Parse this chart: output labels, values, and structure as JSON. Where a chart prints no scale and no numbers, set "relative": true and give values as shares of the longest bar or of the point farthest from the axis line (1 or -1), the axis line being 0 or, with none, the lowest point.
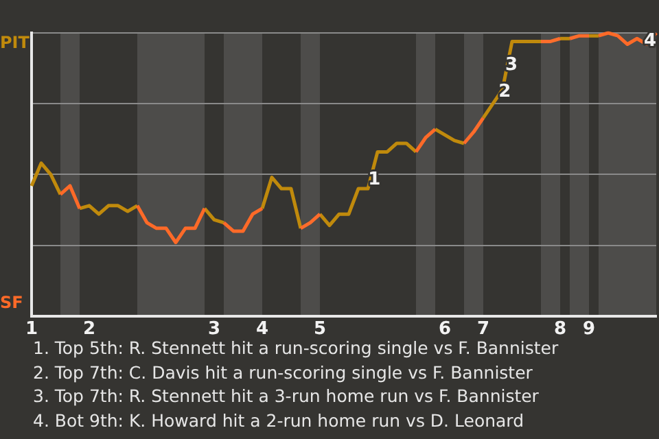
{
  "chart_data": {
    "type": "line",
    "relative": true,
    "categories": [
      "1",
      null,
      null,
      null,
      null,
      null,
      "2",
      null,
      null,
      null,
      null,
      null,
      null,
      null,
      null,
      null,
      null,
      null,
      null,
      "3",
      null,
      null,
      null,
      null,
      "4",
      null,
      null,
      null,
      null,
      null,
      "5",
      null,
      null,
      null,
      null,
      null,
      null,
      null,
      null,
      null,
      null,
      null,
      null,
      "6",
      null,
      null,
      null,
      "7",
      null,
      null,
      null,
      null,
      null,
      null,
      null,
      "8",
      null,
      null,
      "9",
      null,
      null,
      null,
      null,
      null,
      null,
      null
    ],
    "series": [
      {
        "color": "#c08a0c",
        "values": [
          0.46,
          0.54,
          0.5,
          0.43,
          null,
          0.38,
          0.39,
          0.36,
          0.39,
          0.39,
          0.37,
          0.39,
          null,
          null,
          null,
          null,
          null,
          null,
          0.38,
          0.34,
          0.33,
          null,
          null,
          null,
          0.38,
          0.49,
          0.45,
          0.45,
          0.31,
          null,
          0.36,
          0.32,
          0.36,
          0.36,
          0.45,
          0.45,
          0.58,
          0.58,
          0.61,
          0.61,
          0.58,
          null,
          0.66,
          0.64,
          0.62,
          0.61,
          null,
          0.7,
          0.75,
          0.8,
          0.97,
          0.97,
          0.97,
          0.97,
          null,
          0.98,
          0.98,
          null,
          0.99,
          0.99,
          null,
          null,
          null,
          null,
          null,
          null
        ]
      },
      {
        "color": "#ff6a28",
        "values": [
          null,
          null,
          null,
          0.43,
          0.46,
          0.38,
          null,
          null,
          null,
          null,
          null,
          0.39,
          0.33,
          0.31,
          0.31,
          0.26,
          0.31,
          0.31,
          0.38,
          null,
          0.33,
          0.3,
          0.3,
          0.36,
          0.38,
          null,
          null,
          null,
          null,
          null,
          null,
          null,
          null,
          null,
          null,
          null,
          null,
          null,
          null,
          null,
          0.58,
          0.63,
          0.66,
          null,
          null,
          null,
          null,
          null,
          null,
          null,
          null,
          null,
          null,
          null,
          null,
          null,
          null,
          null,
          null,
          0.99,
          1,
          0.99,
          0.96,
          0.98,
          0.96,
          1
        ]
      },
      {
        "color": "#ff6c2b",
        "values": [
          null,
          null,
          null,
          null,
          null,
          null,
          null,
          null,
          null,
          null,
          null,
          null,
          null,
          null,
          null,
          null,
          null,
          null,
          null,
          null,
          null,
          null,
          null,
          null,
          null,
          null,
          null,
          null,
          0.31,
          0.33,
          0.36,
          null,
          null,
          null,
          null,
          null,
          null,
          null,
          null,
          null,
          null,
          null,
          null,
          null,
          null,
          0.61,
          0.65,
          0.7,
          null,
          null,
          null,
          null,
          null,
          null,
          null,
          null,
          0.98,
          0.99,
          0.99,
          null,
          null,
          null,
          null,
          null,
          null,
          null
        ]
      },
      {
        "color": "#ff6e2c",
        "values": [
          null,
          null,
          null,
          null,
          null,
          null,
          null,
          null,
          null,
          null,
          null,
          null,
          null,
          null,
          null,
          null,
          null,
          null,
          null,
          null,
          null,
          null,
          null,
          null,
          null,
          null,
          null,
          null,
          null,
          null,
          null,
          null,
          null,
          null,
          null,
          null,
          null,
          null,
          null,
          null,
          null,
          null,
          null,
          null,
          null,
          null,
          null,
          null,
          null,
          null,
          null,
          null,
          null,
          0.97,
          0.97,
          0.98,
          null,
          null,
          null,
          null,
          null,
          null,
          null,
          null,
          null,
          null
        ]
      }
    ],
    "grid": "y",
    "legend": false,
    "marker": "none",
    "line_style": "solid",
    "annotations": [
      "PIT",
      "SF",
      {
        "text": "1",
        "y": 0.48
      },
      {
        "text": "2",
        "y": 0.79
      },
      {
        "text": "3",
        "y": 0.885
      },
      {
        "text": "4",
        "y": 0.97
      },
      "1. Top 5th: R. Stennett hit a run-scoring single vs F. Bannister",
      "2. Top 7th: C. Davis hit a run-scoring single vs F. Bannister",
      "3. Top 7th: R. Stennett hit a 3-run home run vs F. Bannister",
      "4. Bot 9th: K. Howard hit a 2-run home run vs D. Leonard"
    ]
  }
}
